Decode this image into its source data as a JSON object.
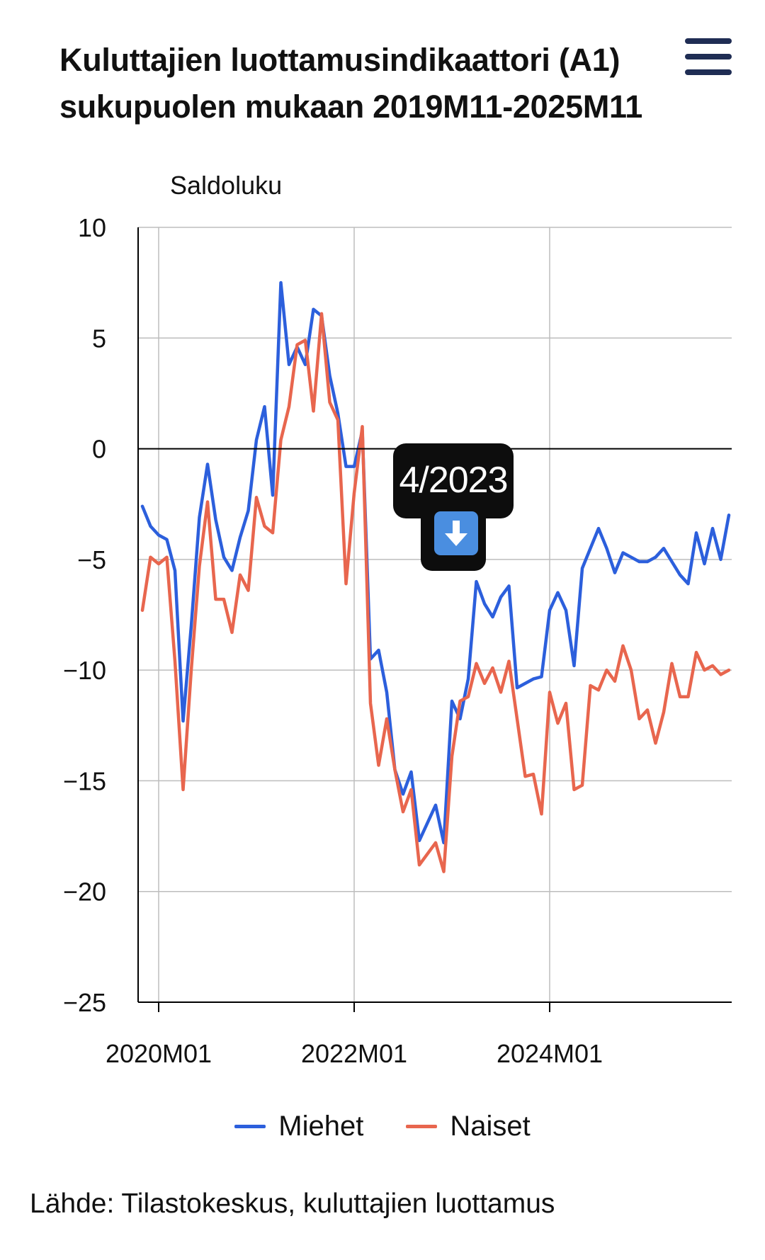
{
  "header": {
    "title": "Kuluttajien luottamusindikaattori (A1) sukupuolen mukaan 2019M11-2025M11"
  },
  "tooltip": {
    "label": "4/2023"
  },
  "legend": [
    {
      "label": "Miehet",
      "color": "#2c5fdc"
    },
    {
      "label": "Naiset",
      "color": "#e8664e"
    }
  ],
  "source": "Lähde: Tilastokeskus, kuluttajien luottamus",
  "chart_data": {
    "type": "line",
    "title": "Kuluttajien luottamusindikaattori (A1) sukupuolen mukaan 2019M11-2025M11",
    "ylabel": "Saldoluku",
    "xlabel": "",
    "ylim": [
      -25,
      10
    ],
    "yticks": [
      10,
      5,
      0,
      -5,
      -10,
      -15,
      -20,
      -25
    ],
    "ytick_labels": [
      "10",
      "5",
      "0",
      "−5",
      "−10",
      "−15",
      "−20",
      "−25"
    ],
    "xticks": [
      {
        "index": 2,
        "label": "2020M01"
      },
      {
        "index": 26,
        "label": "2022M01"
      },
      {
        "index": 50,
        "label": "2024M01"
      }
    ],
    "grid": true,
    "legend_position": "bottom",
    "x_start": "2019M11",
    "x_end": "2025M11",
    "series": [
      {
        "name": "Miehet",
        "color": "#2c5fdc",
        "values": [
          -2.6,
          -3.5,
          -3.9,
          -4.1,
          -5.5,
          -12.3,
          -8.0,
          -3.1,
          -0.7,
          -3.2,
          -4.9,
          -5.5,
          -4.0,
          -2.8,
          0.4,
          1.9,
          -2.1,
          7.5,
          3.8,
          4.6,
          3.8,
          6.3,
          6.0,
          3.3,
          1.6,
          -0.8,
          -0.8,
          0.8,
          -9.5,
          -9.1,
          -11.0,
          -14.5,
          -15.6,
          -14.6,
          -17.7,
          -16.9,
          -16.1,
          -17.8,
          -11.4,
          -12.2,
          -10.4,
          -6.0,
          -7.0,
          -7.6,
          -6.7,
          -6.2,
          -10.8,
          -10.6,
          -10.4,
          -10.3,
          -7.3,
          -6.5,
          -7.3,
          -9.8,
          -5.4,
          -4.5,
          -3.6,
          -4.5,
          -5.6,
          -4.7,
          -4.9,
          -5.1,
          -5.1,
          -4.9,
          -4.5,
          -5.1,
          -5.7,
          -6.1,
          -3.8,
          -5.2,
          -3.6,
          -5.0,
          -3.0
        ]
      },
      {
        "name": "Naiset",
        "color": "#e8664e",
        "values": [
          -7.3,
          -4.9,
          -5.2,
          -4.9,
          -9.6,
          -15.4,
          -10.0,
          -5.3,
          -2.4,
          -6.8,
          -6.8,
          -8.3,
          -5.7,
          -6.4,
          -2.2,
          -3.5,
          -3.8,
          0.4,
          1.9,
          4.7,
          4.9,
          1.7,
          6.1,
          2.1,
          1.3,
          -6.1,
          -2.0,
          1.0,
          -11.5,
          -14.3,
          -12.2,
          -14.5,
          -16.4,
          -15.4,
          -18.8,
          -18.3,
          -17.8,
          -19.1,
          -13.9,
          -11.4,
          -11.2,
          -9.7,
          -10.6,
          -9.9,
          -11.0,
          -9.6,
          -12.2,
          -14.8,
          -14.7,
          -16.5,
          -11.0,
          -12.4,
          -11.5,
          -15.4,
          -15.2,
          -10.7,
          -10.9,
          -10.0,
          -10.5,
          -8.9,
          -10.0,
          -12.2,
          -11.8,
          -13.3,
          -11.9,
          -9.7,
          -11.2,
          -11.2,
          -9.2,
          -10.0,
          -9.8,
          -10.2,
          -10.0
        ]
      }
    ]
  }
}
